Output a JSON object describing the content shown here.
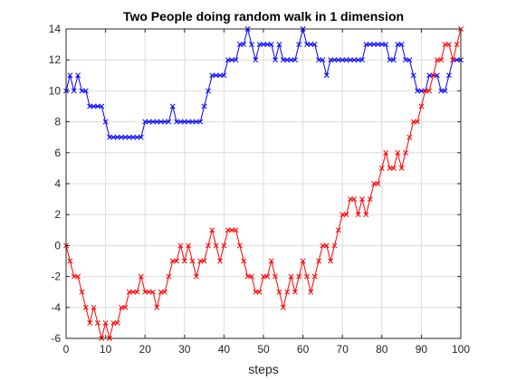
{
  "chart_data": {
    "type": "line",
    "title": "Two People doing random walk in 1 dimension",
    "xlabel": "steps",
    "ylabel": "",
    "xlim": [
      0,
      100
    ],
    "ylim": [
      -6,
      14
    ],
    "xticks": [
      0,
      10,
      20,
      30,
      40,
      50,
      60,
      70,
      80,
      90,
      100
    ],
    "yticks": [
      -6,
      -4,
      -2,
      0,
      2,
      4,
      6,
      8,
      10,
      12,
      14
    ],
    "grid": true,
    "marker": "x",
    "series": [
      {
        "color": "#0000ff",
        "y": [
          10,
          11,
          10,
          11,
          10,
          10,
          9,
          9,
          9,
          9,
          8,
          7,
          7,
          7,
          7,
          7,
          7,
          7,
          7,
          7,
          8,
          8,
          8,
          8,
          8,
          8,
          8,
          9,
          8,
          8,
          8,
          8,
          8,
          8,
          8,
          9,
          10,
          11,
          11,
          11,
          11,
          12,
          12,
          12,
          13,
          13,
          14,
          13,
          12,
          13,
          13,
          13,
          13,
          12,
          13,
          12,
          12,
          12,
          12,
          13,
          14,
          13,
          13,
          13,
          12,
          12,
          11,
          12,
          12,
          12,
          12,
          12,
          12,
          12,
          12,
          12,
          13,
          13,
          13,
          13,
          13,
          13,
          12,
          12,
          13,
          13,
          12,
          12,
          11,
          10,
          10,
          10,
          11,
          11,
          11,
          10,
          10,
          11,
          12,
          12,
          12
        ]
      },
      {
        "color": "#ff0000",
        "y": [
          0,
          -1,
          -2,
          -2,
          -3,
          -4,
          -5,
          -4,
          -5,
          -6,
          -5,
          -6,
          -5,
          -5,
          -4,
          -4,
          -3,
          -3,
          -3,
          -2,
          -3,
          -3,
          -3,
          -4,
          -3,
          -3,
          -2,
          -1,
          -1,
          0,
          -1,
          0,
          -1,
          -2,
          -1,
          -1,
          0,
          1,
          0,
          -1,
          0,
          1,
          1,
          1,
          0,
          -1,
          -2,
          -2,
          -3,
          -3,
          -2,
          -2,
          -1,
          -2,
          -3,
          -4,
          -3,
          -2,
          -3,
          -2,
          -1,
          -2,
          -3,
          -2,
          -1,
          0,
          0,
          -1,
          0,
          1,
          2,
          2,
          3,
          3,
          2,
          3,
          2,
          3,
          4,
          4,
          5,
          6,
          5,
          5,
          6,
          5,
          6,
          7,
          8,
          8,
          9,
          10,
          10,
          11,
          12,
          12,
          13,
          13,
          12,
          13,
          14
        ]
      }
    ]
  }
}
